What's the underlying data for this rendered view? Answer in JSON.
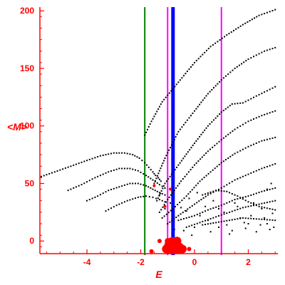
{
  "chart_data": {
    "type": "scatter",
    "xlabel": "E",
    "ylabel": "<M>",
    "xlim": [
      -5.75,
      3.1
    ],
    "ylim": [
      -11,
      202
    ],
    "x_ticks": [
      {
        "value": -4,
        "label": "-4"
      },
      {
        "value": -2,
        "label": "-2"
      },
      {
        "value": 0,
        "label": "0"
      },
      {
        "value": 2,
        "label": "2"
      }
    ],
    "y_ticks": [
      {
        "value": 0,
        "label": "0"
      },
      {
        "value": 50,
        "label": "50"
      },
      {
        "value": 100,
        "label": "100"
      },
      {
        "value": 150,
        "label": "150"
      },
      {
        "value": 200,
        "label": "200"
      }
    ],
    "axis_color": "#ff0000",
    "point_color": "#000000",
    "highlight_color": "#ff0000",
    "vertical_lines": [
      {
        "x": -1.85,
        "color": "#008000",
        "weight": "thin"
      },
      {
        "x": -1.0,
        "color": "#ff00ff",
        "weight": "thin"
      },
      {
        "x": -0.8,
        "color": "#0000ff",
        "weight": "thick"
      },
      {
        "x": 1.0,
        "color": "#ff00ff",
        "weight": "thin"
      }
    ],
    "series": [
      {
        "values": [
          [
            -5.7,
            56
          ],
          [
            -5.2,
            60
          ],
          [
            -4.6,
            65
          ],
          [
            -4.0,
            70
          ],
          [
            -3.5,
            74
          ],
          [
            -3.0,
            76.5
          ],
          [
            -2.6,
            76.5
          ],
          [
            -2.3,
            75
          ],
          [
            -2.05,
            72
          ],
          [
            -1.85,
            68
          ],
          [
            -1.7,
            64
          ],
          [
            -1.55,
            60
          ],
          [
            -1.45,
            57
          ],
          [
            -1.35,
            55
          ],
          [
            -1.25,
            52
          ]
        ]
      },
      {
        "values": [
          [
            -4.7,
            44
          ],
          [
            -4.2,
            49
          ],
          [
            -3.7,
            55
          ],
          [
            -3.2,
            60
          ],
          [
            -2.8,
            63
          ],
          [
            -2.4,
            63
          ],
          [
            -2.1,
            61
          ],
          [
            -1.8,
            57
          ],
          [
            -1.55,
            53
          ],
          [
            -1.3,
            49
          ],
          [
            -1.1,
            46
          ]
        ]
      },
      {
        "values": [
          [
            -4.0,
            35
          ],
          [
            -3.6,
            39
          ],
          [
            -3.2,
            44
          ],
          [
            -2.8,
            47
          ],
          [
            -2.4,
            50
          ],
          [
            -2.1,
            50
          ],
          [
            -1.8,
            48
          ],
          [
            -1.55,
            45
          ],
          [
            -1.3,
            42
          ],
          [
            -1.1,
            40
          ]
        ]
      },
      {
        "values": [
          [
            -3.3,
            26
          ],
          [
            -2.9,
            31
          ],
          [
            -2.5,
            35
          ],
          [
            -2.1,
            38
          ],
          [
            -1.8,
            39
          ],
          [
            -1.55,
            38
          ],
          [
            -1.3,
            36
          ],
          [
            -1.1,
            34
          ]
        ]
      },
      {
        "values": [
          [
            -1.85,
            92
          ],
          [
            -1.6,
            104
          ],
          [
            -1.2,
            121
          ],
          [
            -0.6,
            138
          ],
          [
            0.0,
            155
          ],
          [
            0.6,
            169
          ],
          [
            1.2,
            179
          ],
          [
            1.8,
            188
          ],
          [
            2.4,
            196
          ],
          [
            3.0,
            201
          ]
        ]
      },
      {
        "values": [
          [
            -1.5,
            50
          ],
          [
            -1.1,
            72
          ],
          [
            -0.6,
            95
          ],
          [
            0.0,
            113
          ],
          [
            0.5,
            128
          ],
          [
            1.0,
            140
          ],
          [
            1.5,
            150
          ],
          [
            2.0,
            158
          ],
          [
            2.6,
            165
          ],
          [
            3.0,
            168
          ]
        ]
      },
      {
        "values": [
          [
            -1.4,
            35
          ],
          [
            -1.1,
            50
          ],
          [
            -0.6,
            66
          ],
          [
            0.0,
            85
          ],
          [
            0.5,
            100
          ],
          [
            1.0,
            112
          ],
          [
            1.4,
            119
          ],
          [
            1.8,
            120
          ],
          [
            2.3,
            126
          ],
          [
            3.0,
            134
          ]
        ]
      },
      {
        "values": [
          [
            -1.3,
            25
          ],
          [
            -1.0,
            36
          ],
          [
            -0.5,
            52
          ],
          [
            0.0,
            66
          ],
          [
            0.5,
            78
          ],
          [
            1.0,
            88
          ],
          [
            1.5,
            97
          ],
          [
            2.0,
            104
          ],
          [
            2.5,
            109
          ],
          [
            3.0,
            113
          ]
        ]
      },
      {
        "values": [
          [
            -1.2,
            20
          ],
          [
            -0.8,
            28
          ],
          [
            -0.3,
            39
          ],
          [
            0.2,
            52
          ],
          [
            0.6,
            60
          ],
          [
            1.0,
            68
          ],
          [
            1.5,
            76
          ],
          [
            2.0,
            82
          ],
          [
            2.5,
            87
          ],
          [
            3.0,
            90
          ]
        ]
      },
      {
        "values": [
          [
            -1.0,
            15
          ],
          [
            -0.6,
            22
          ],
          [
            0.0,
            32
          ],
          [
            0.5,
            40
          ],
          [
            1.0,
            46
          ],
          [
            1.5,
            53
          ],
          [
            2.0,
            58
          ],
          [
            2.5,
            63
          ],
          [
            3.0,
            67
          ]
        ]
      },
      {
        "values": [
          [
            -0.6,
            18
          ],
          [
            0.0,
            22
          ],
          [
            0.5,
            27
          ],
          [
            1.0,
            31
          ],
          [
            1.5,
            36
          ],
          [
            2.0,
            39
          ],
          [
            2.5,
            43
          ],
          [
            3.0,
            46
          ]
        ]
      },
      {
        "values": [
          [
            -0.3,
            12
          ],
          [
            0.2,
            16
          ],
          [
            0.8,
            21
          ],
          [
            1.3,
            25
          ],
          [
            1.8,
            29
          ],
          [
            2.4,
            32
          ],
          [
            3.0,
            35
          ]
        ]
      },
      {
        "values": [
          [
            0.3,
            40
          ],
          [
            0.8,
            44
          ],
          [
            1.2,
            43
          ],
          [
            1.6,
            39
          ],
          [
            2.0,
            34
          ],
          [
            2.4,
            30
          ],
          [
            2.8,
            28
          ],
          [
            3.0,
            27
          ]
        ]
      },
      {
        "values": [
          [
            0.3,
            14
          ],
          [
            0.8,
            16
          ],
          [
            1.3,
            18
          ],
          [
            1.8,
            20
          ],
          [
            2.4,
            19
          ],
          [
            3.0,
            18
          ]
        ]
      }
    ],
    "scattered_points": [
      [
        -0.9,
        33
      ],
      [
        -0.5,
        29
      ],
      [
        -0.2,
        37
      ],
      [
        0.2,
        22
      ],
      [
        0.6,
        8
      ],
      [
        0.9,
        12
      ],
      [
        1.1,
        25
      ],
      [
        1.3,
        6
      ],
      [
        1.6,
        30
      ],
      [
        1.9,
        11
      ],
      [
        2.1,
        22
      ],
      [
        2.3,
        8
      ],
      [
        2.5,
        28
      ],
      [
        2.7,
        15
      ],
      [
        2.9,
        24
      ],
      [
        -0.1,
        5
      ],
      [
        0.4,
        30
      ],
      [
        0.7,
        35
      ],
      [
        1.4,
        9
      ],
      [
        1.7,
        20
      ],
      [
        2.0,
        15
      ],
      [
        2.2,
        33
      ],
      [
        2.6,
        20
      ],
      [
        2.8,
        10
      ],
      [
        0.0,
        12
      ],
      [
        -0.4,
        9
      ],
      [
        0.5,
        18
      ],
      [
        1.2,
        14
      ],
      [
        1.85,
        16
      ],
      [
        2.45,
        14
      ],
      [
        2.95,
        12
      ],
      [
        -1.3,
        40
      ],
      [
        -1.1,
        28
      ],
      [
        -0.75,
        10
      ],
      [
        2.7,
        45
      ],
      [
        2.85,
        50
      ],
      [
        0.9,
        28
      ],
      [
        1.5,
        33
      ],
      [
        0.1,
        42
      ],
      [
        -0.3,
        26
      ]
    ],
    "highlight_points": [
      {
        "x": -0.8,
        "y": -4,
        "size": 12
      },
      {
        "x": -0.95,
        "y": -6,
        "size": 8
      },
      {
        "x": -0.6,
        "y": -6,
        "size": 8
      },
      {
        "x": -1.05,
        "y": -7,
        "size": 6
      },
      {
        "x": -0.45,
        "y": -7,
        "size": 6
      },
      {
        "x": -0.65,
        "y": 0,
        "size": 6
      },
      {
        "x": -1.0,
        "y": 0,
        "size": 4
      },
      {
        "x": -1.3,
        "y": 0,
        "size": 3
      },
      {
        "x": -1.6,
        "y": -9,
        "size": 3
      },
      {
        "x": -0.2,
        "y": -7,
        "size": 3
      },
      {
        "x": -1.1,
        "y": 30,
        "size": 2
      },
      {
        "x": -0.9,
        "y": 45,
        "size": 2
      },
      {
        "x": -1.5,
        "y": 48,
        "size": 2
      }
    ]
  }
}
